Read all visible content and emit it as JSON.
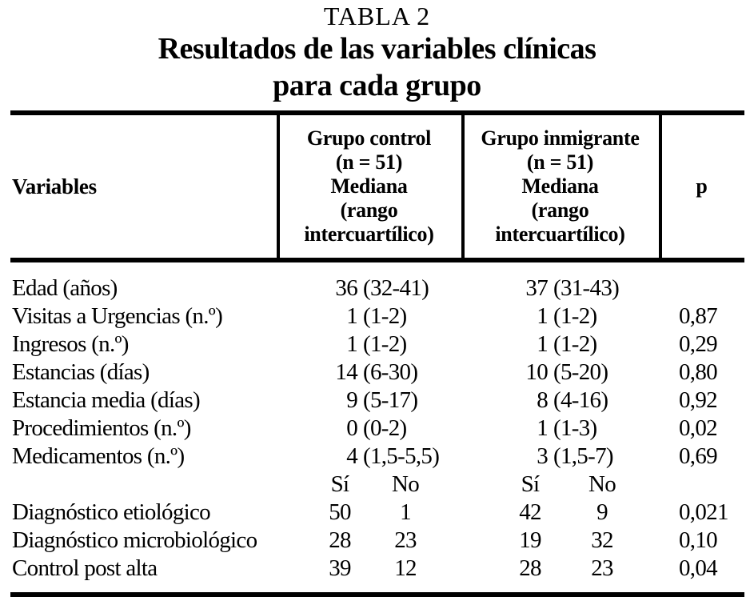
{
  "title": {
    "tabla": "TABLA 2",
    "subtitle_line1": "Resultados de las variables clínicas",
    "subtitle_line2": "para cada grupo"
  },
  "table": {
    "header": {
      "variables": "Variables",
      "control": {
        "l1": "Grupo control",
        "l2": "(n = 51)",
        "l3": "Mediana",
        "l4": "(rango",
        "l5": "intercuartílico)"
      },
      "immigrant": {
        "l1": "Grupo inmigrante",
        "l2": "(n = 51)",
        "l3": "Mediana",
        "l4": "(rango",
        "l5": "intercuartílico)"
      },
      "p": "p"
    },
    "median_rows": [
      {
        "variable": "Edad (años)",
        "control_num": "36",
        "control_range": "(32-41)",
        "immigrant_num": "37",
        "immigrant_range": "(31-43)",
        "p": ""
      },
      {
        "variable": "Visitas a Urgencias (n.º)",
        "control_num": "1",
        "control_range": "(1-2)",
        "immigrant_num": "1",
        "immigrant_range": "(1-2)",
        "p": "0,87"
      },
      {
        "variable": "Ingresos (n.º)",
        "control_num": "1",
        "control_range": "(1-2)",
        "immigrant_num": "1",
        "immigrant_range": "(1-2)",
        "p": "0,29"
      },
      {
        "variable": "Estancias (días)",
        "control_num": "14",
        "control_range": "(6-30)",
        "immigrant_num": "10",
        "immigrant_range": "(5-20)",
        "p": "0,80"
      },
      {
        "variable": "Estancia media (días)",
        "control_num": "9",
        "control_range": "(5-17)",
        "immigrant_num": "8",
        "immigrant_range": "(4-16)",
        "p": "0,92"
      },
      {
        "variable": "Procedimientos (n.º)",
        "control_num": "0",
        "control_range": "(0-2)",
        "immigrant_num": "1",
        "immigrant_range": "(1-3)",
        "p": "0,02"
      },
      {
        "variable": "Medicamentos (n.º)",
        "control_num": "4",
        "control_range": "(1,5-5,5)",
        "immigrant_num": "3",
        "immigrant_range": "(1,5-7)",
        "p": "0,69"
      }
    ],
    "subheader": {
      "si": "Sí",
      "no": "No"
    },
    "count_rows": [
      {
        "variable": "Diagnóstico etiológico",
        "control_si": "50",
        "control_no": "1",
        "immigrant_si": "42",
        "immigrant_no": "9",
        "p": "0,021"
      },
      {
        "variable": "Diagnóstico microbiológico",
        "control_si": "28",
        "control_no": "23",
        "immigrant_si": "19",
        "immigrant_no": "32",
        "p": "0,10"
      },
      {
        "variable": "Control post alta",
        "control_si": "39",
        "control_no": "12",
        "immigrant_si": "28",
        "immigrant_no": "23",
        "p": "0,04"
      }
    ]
  }
}
